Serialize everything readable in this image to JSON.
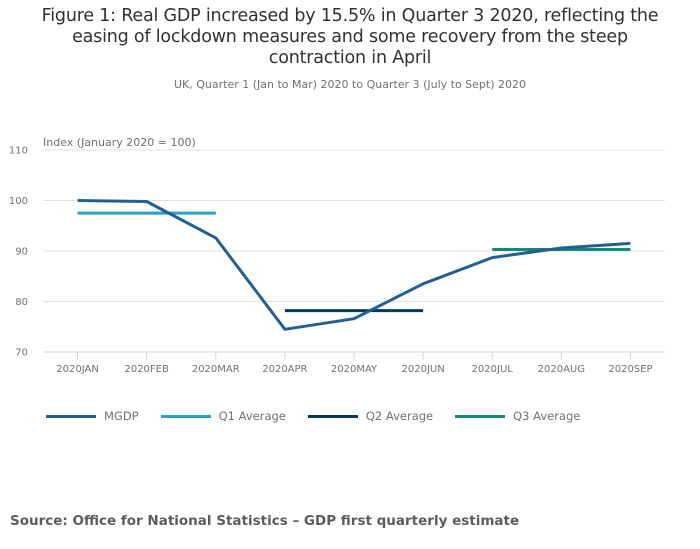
{
  "chart_data": {
    "type": "line",
    "title": "Figure 1: Real GDP increased by 15.5% in Quarter 3 2020, reflecting the easing of lockdown measures and some recovery from the steep contraction in April",
    "title_lines": [
      "Figure 1: Real GDP increased by 15.5% in Quarter 3 2020, reflecting the",
      "easing of lockdown measures and some recovery from the steep",
      "contraction in April"
    ],
    "subtitle": "UK, Quarter 1 (Jan to Mar) 2020 to Quarter 3 (July to Sept) 2020",
    "xlabel": "",
    "ylabel": "Index (January 2020 = 100)",
    "ylim": [
      70,
      110
    ],
    "yticks": [
      70,
      80,
      90,
      100,
      110
    ],
    "grid": true,
    "legend_position": "bottom",
    "categories": [
      "2020JAN",
      "2020FEB",
      "2020MAR",
      "2020APR",
      "2020MAY",
      "2020JUN",
      "2020JUL",
      "2020AUG",
      "2020SEP"
    ],
    "series": [
      {
        "name": "MGDP",
        "color": "#206095",
        "values": [
          100.0,
          99.8,
          92.6,
          74.5,
          76.6,
          83.5,
          88.7,
          90.6,
          91.5
        ]
      },
      {
        "name": "Q1 Average",
        "color": "#27a0cc",
        "values": [
          97.5,
          97.5,
          97.5,
          null,
          null,
          null,
          null,
          null,
          null
        ]
      },
      {
        "name": "Q2 Average",
        "color": "#003c57",
        "values": [
          null,
          null,
          null,
          78.2,
          78.2,
          78.2,
          null,
          null,
          null
        ]
      },
      {
        "name": "Q3 Average",
        "color": "#118c7b",
        "values": [
          null,
          null,
          null,
          null,
          null,
          null,
          90.3,
          90.3,
          90.3
        ]
      }
    ]
  },
  "source": "Source: Office for National Statistics – GDP first quarterly estimate",
  "colors": {
    "grid": "#e0e0e0",
    "axis": "#ccd6eb",
    "text": "#707070"
  }
}
